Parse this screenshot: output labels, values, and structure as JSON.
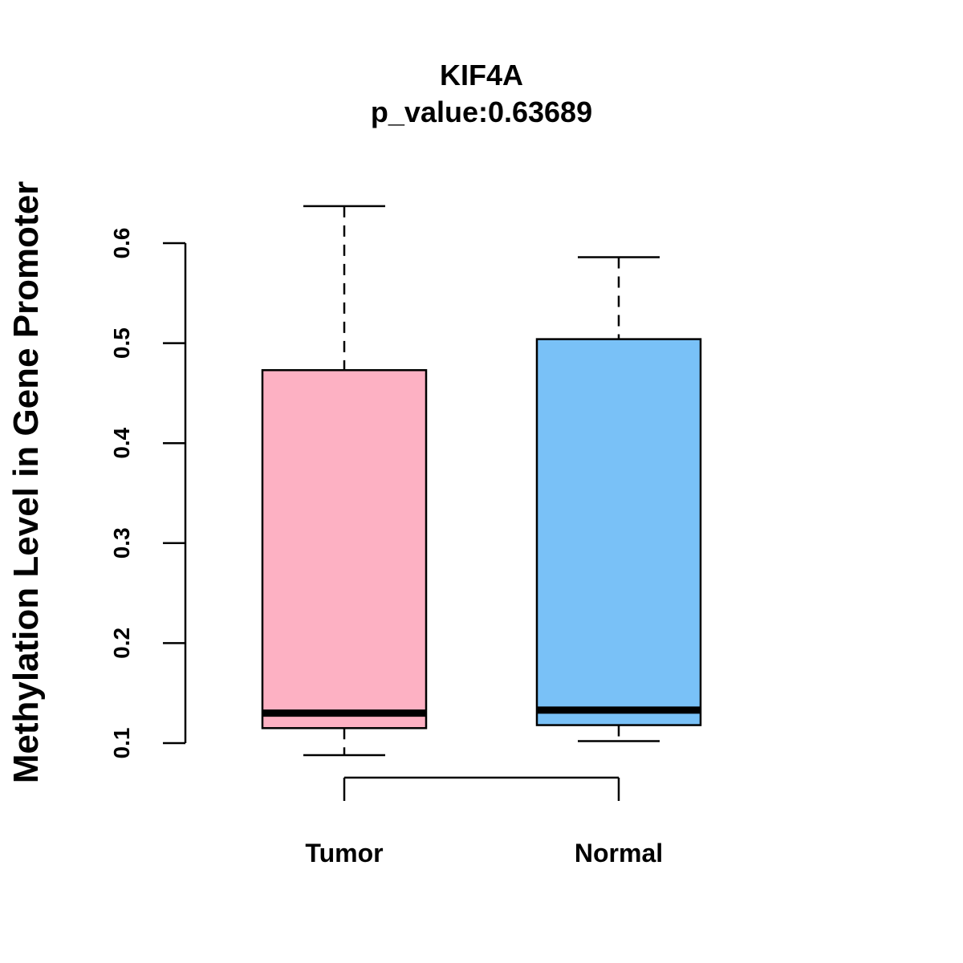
{
  "chart_data": {
    "type": "boxplot",
    "title": "KIF4A",
    "subtitle": "p_value:0.63689",
    "xlabel": "",
    "ylabel": "Methylation Level in Gene Promoter",
    "ylim": [
      0.1,
      0.6
    ],
    "yticks": [
      0.1,
      0.2,
      0.3,
      0.4,
      0.5,
      0.6
    ],
    "ytick_labels": [
      "0.1",
      "0.2",
      "0.3",
      "0.4",
      "0.5",
      "0.6"
    ],
    "categories": [
      "Tumor",
      "Normal"
    ],
    "series": [
      {
        "name": "Tumor",
        "min": 0.088,
        "q1": 0.115,
        "median": 0.13,
        "q3": 0.473,
        "max": 0.637,
        "color": "#FDB1C3"
      },
      {
        "name": "Normal",
        "min": 0.102,
        "q1": 0.118,
        "median": 0.133,
        "q3": 0.504,
        "max": 0.586,
        "color": "#79C1F7"
      }
    ],
    "legend": "none",
    "grid": false
  }
}
